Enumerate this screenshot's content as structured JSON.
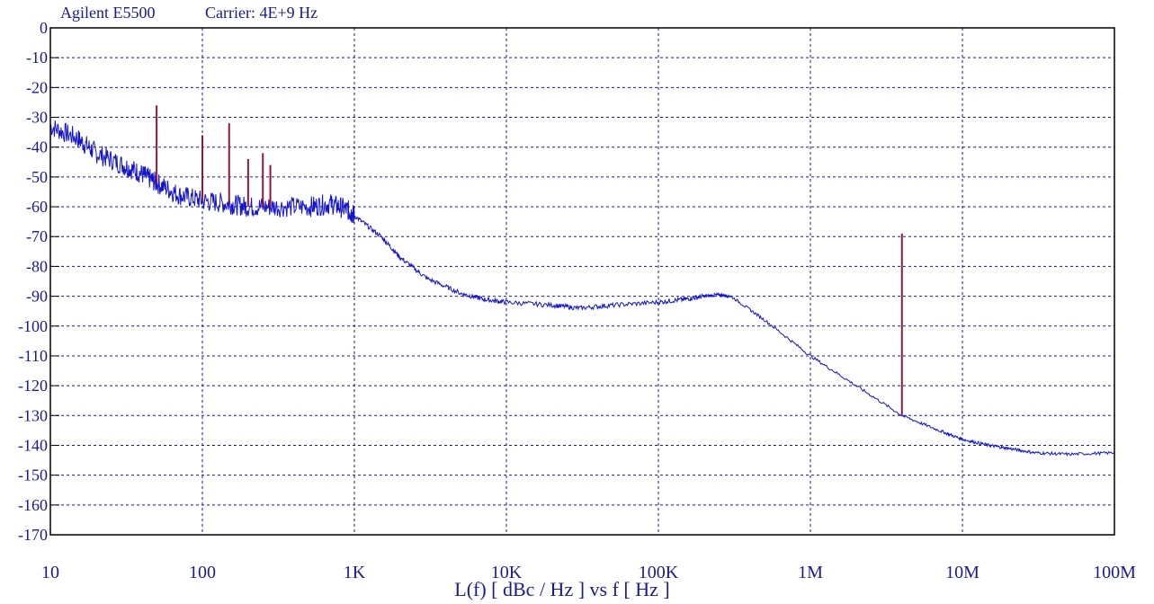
{
  "header": {
    "instrument": "Agilent E5500",
    "carrier": "Carrier: 4E+9 Hz"
  },
  "chart_data": {
    "type": "line",
    "title": "Agilent E5500    Carrier: 4E+9 Hz",
    "xlabel": "L(f)  [ dBc / Hz ]  vs  f  [ Hz ]",
    "ylabel": "",
    "x_scale": "log",
    "xlim": [
      10,
      100000000
    ],
    "ylim": [
      -170,
      0
    ],
    "x_ticks": [
      {
        "value": 10,
        "label": "10"
      },
      {
        "value": 100,
        "label": "100"
      },
      {
        "value": 1000,
        "label": "1K"
      },
      {
        "value": 10000,
        "label": "10K"
      },
      {
        "value": 100000,
        "label": "100K"
      },
      {
        "value": 1000000,
        "label": "1M"
      },
      {
        "value": 10000000,
        "label": "10M"
      },
      {
        "value": 100000000,
        "label": "100M"
      }
    ],
    "y_ticks": [
      0,
      -10,
      -20,
      -30,
      -40,
      -50,
      -60,
      -70,
      -80,
      -90,
      -100,
      -110,
      -120,
      -130,
      -140,
      -150,
      -160,
      -170
    ],
    "grid": true,
    "colors": {
      "noise": "#1414c8",
      "spurs": "#8b1a3a",
      "grid": "#1a1a8c",
      "axis": "#000000"
    },
    "series": [
      {
        "x": [
          10,
          15,
          20,
          30,
          40,
          50,
          70,
          100,
          150,
          200,
          300,
          500,
          700,
          900,
          1000,
          1500,
          2000,
          3000,
          5000,
          7000,
          10000,
          20000,
          30000,
          50000,
          100000,
          150000,
          200000,
          250000,
          300000,
          500000,
          1000000,
          2000000,
          4000000,
          7000000,
          10000000,
          15000000,
          20000000,
          30000000,
          50000000,
          100000000
        ],
        "values": [
          -33,
          -37,
          -42,
          -46,
          -49,
          -52,
          -56,
          -58,
          -59,
          -60,
          -60,
          -60,
          -59,
          -61,
          -63,
          -70,
          -77,
          -84,
          -89,
          -91,
          -92,
          -93,
          -94,
          -93,
          -92,
          -91,
          -90,
          -89.5,
          -90,
          -98,
          -110,
          -120,
          -130,
          -135,
          -138,
          -140,
          -141,
          -142.5,
          -143,
          -142.5
        ]
      },
      {
        "spurs": [
          {
            "x": 50,
            "y": -26
          },
          {
            "x": 100,
            "y": -36
          },
          {
            "x": 150,
            "y": -32
          },
          {
            "x": 200,
            "y": -44
          },
          {
            "x": 250,
            "y": -42
          },
          {
            "x": 280,
            "y": -46
          },
          {
            "x": 4000000,
            "y": -69
          }
        ]
      }
    ]
  }
}
